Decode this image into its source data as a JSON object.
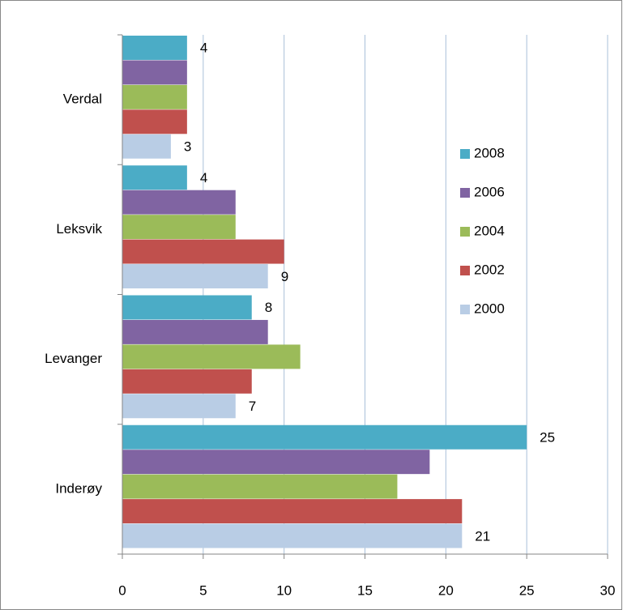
{
  "chart_data": {
    "type": "bar",
    "orientation": "horizontal",
    "categories": [
      "Verdal",
      "Leksvik",
      "Levanger",
      "Inderøy"
    ],
    "series": [
      {
        "name": "2008",
        "color": "#4bacc6",
        "values": [
          4,
          4,
          8,
          25
        ],
        "show_labels": true
      },
      {
        "name": "2006",
        "color": "#8064a2",
        "values": [
          4,
          7,
          9,
          19
        ],
        "show_labels": false
      },
      {
        "name": "2004",
        "color": "#9bbb59",
        "values": [
          4,
          7,
          11,
          17
        ],
        "show_labels": false
      },
      {
        "name": "2002",
        "color": "#c0504d",
        "values": [
          4,
          10,
          8,
          21
        ],
        "show_labels": false
      },
      {
        "name": "2000",
        "color": "#b9cde5",
        "values": [
          3,
          9,
          7,
          21
        ],
        "show_labels": true
      }
    ],
    "xlim": [
      0,
      30
    ],
    "xticks": [
      0,
      5,
      10,
      15,
      20,
      25,
      30
    ],
    "grid": true,
    "legend": "right"
  }
}
